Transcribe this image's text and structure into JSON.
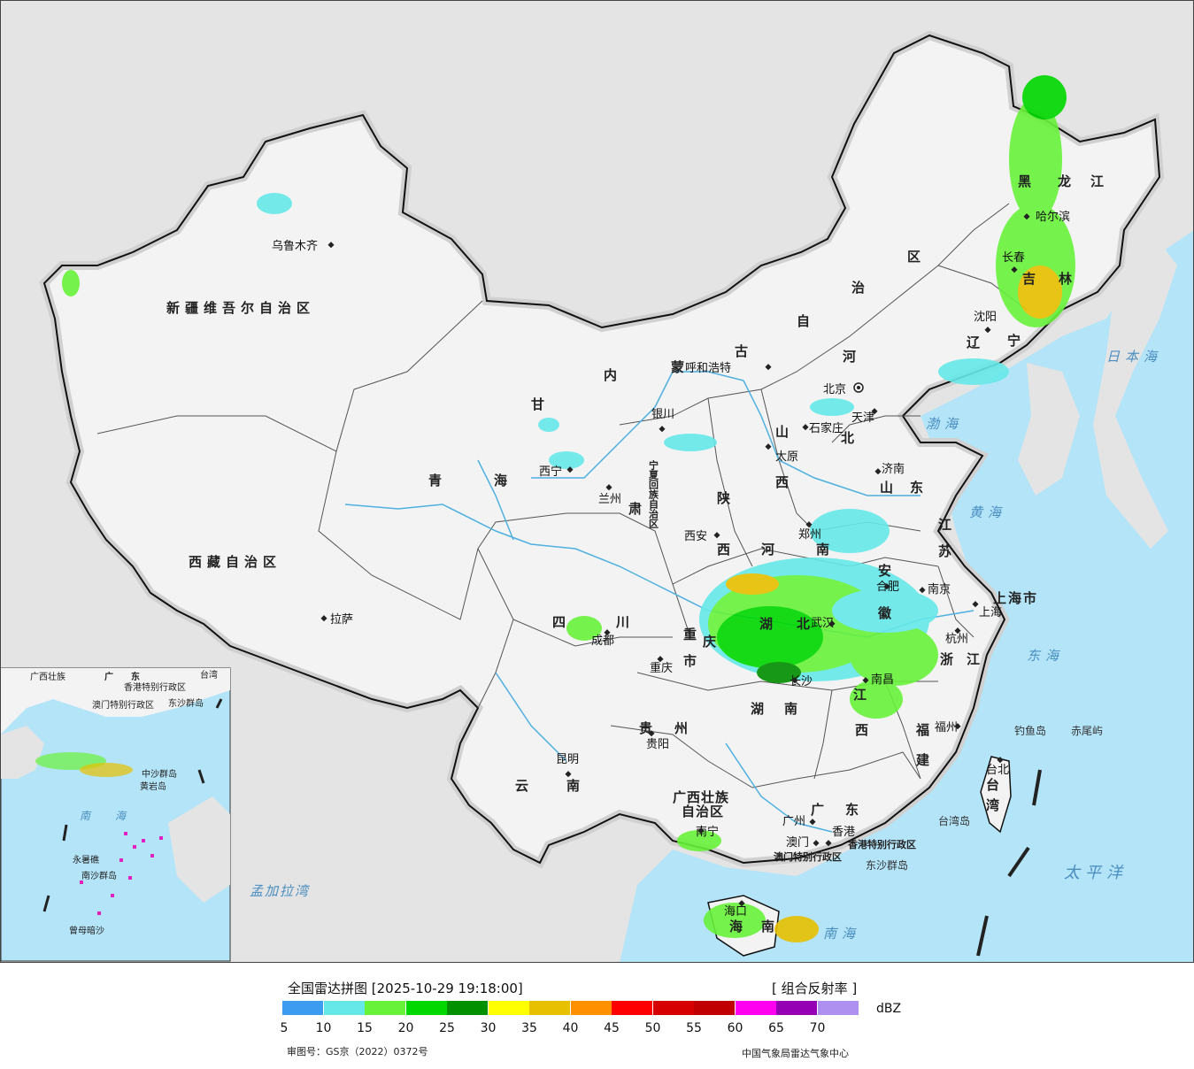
{
  "colors": {
    "ocean": "#b4e4f8",
    "land_bg": "#e4e4e4",
    "china": "#f3f3f3",
    "border": "#111111",
    "river": "#4db0e0"
  },
  "map": {
    "provinces": [
      {
        "text": "新疆维吾尔自治区",
        "kind": "province"
      },
      {
        "text": "西藏自治区",
        "kind": "province"
      },
      {
        "text": "青",
        "kind": "province"
      },
      {
        "text": "海",
        "kind": "province"
      },
      {
        "text": "甘",
        "kind": "province"
      },
      {
        "text": "肃",
        "kind": "province"
      },
      {
        "text": "四",
        "kind": "province"
      },
      {
        "text": "川",
        "kind": "province"
      },
      {
        "text": "云",
        "kind": "province"
      },
      {
        "text": "南",
        "kind": "province"
      },
      {
        "text": "内",
        "kind": "province"
      },
      {
        "text": "蒙",
        "kind": "province"
      },
      {
        "text": "古",
        "kind": "province"
      },
      {
        "text": "自",
        "kind": "province"
      },
      {
        "text": "治",
        "kind": "province"
      },
      {
        "text": "区",
        "kind": "province"
      },
      {
        "text": "黑",
        "kind": "province"
      },
      {
        "text": "龙",
        "kind": "province"
      },
      {
        "text": "江",
        "kind": "province"
      },
      {
        "text": "吉",
        "kind": "province"
      },
      {
        "text": "林",
        "kind": "province"
      },
      {
        "text": "辽",
        "kind": "province"
      },
      {
        "text": "宁",
        "kind": "province"
      },
      {
        "text": "河",
        "kind": "province"
      },
      {
        "text": "北",
        "kind": "province"
      },
      {
        "text": "山",
        "kind": "province"
      },
      {
        "text": "西",
        "kind": "province"
      },
      {
        "text": "陕",
        "kind": "province"
      },
      {
        "text": "西",
        "kind": "province"
      },
      {
        "text": "山",
        "kind": "province"
      },
      {
        "text": "东",
        "kind": "province"
      },
      {
        "text": "河",
        "kind": "province"
      },
      {
        "text": "南",
        "kind": "province"
      },
      {
        "text": "江",
        "kind": "province"
      },
      {
        "text": "苏",
        "kind": "province"
      },
      {
        "text": "安",
        "kind": "province"
      },
      {
        "text": "徽",
        "kind": "province"
      },
      {
        "text": "上海市",
        "kind": "province"
      },
      {
        "text": "浙",
        "kind": "province"
      },
      {
        "text": "江",
        "kind": "province"
      },
      {
        "text": "湖",
        "kind": "province"
      },
      {
        "text": "北",
        "kind": "province"
      },
      {
        "text": "重",
        "kind": "province"
      },
      {
        "text": "庆",
        "kind": "province"
      },
      {
        "text": "市",
        "kind": "province"
      },
      {
        "text": "湖",
        "kind": "province"
      },
      {
        "text": "南",
        "kind": "province"
      },
      {
        "text": "江",
        "kind": "province"
      },
      {
        "text": "西",
        "kind": "province"
      },
      {
        "text": "贵",
        "kind": "province"
      },
      {
        "text": "州",
        "kind": "province"
      },
      {
        "text": "福",
        "kind": "province"
      },
      {
        "text": "建",
        "kind": "province"
      },
      {
        "text": "广西壮族",
        "kind": "province"
      },
      {
        "text": "自治区",
        "kind": "province"
      },
      {
        "text": "广",
        "kind": "province"
      },
      {
        "text": "东",
        "kind": "province"
      },
      {
        "text": "海",
        "kind": "province"
      },
      {
        "text": "南",
        "kind": "province"
      },
      {
        "text": "台",
        "kind": "province"
      },
      {
        "text": "湾",
        "kind": "province"
      },
      {
        "text": "宁夏回族自治区",
        "kind": "province_small"
      },
      {
        "text": "香港特别行政区",
        "kind": "province_small"
      },
      {
        "text": "澳门特别行政区",
        "kind": "province_small"
      }
    ],
    "cities": [
      "乌鲁木齐",
      "拉萨",
      "西宁",
      "兰州",
      "银川",
      "呼和浩特",
      "北京",
      "天津",
      "石家庄",
      "太原",
      "济南",
      "郑州",
      "西安",
      "成都",
      "重庆",
      "昆明",
      "贵阳",
      "长沙",
      "武汉",
      "南昌",
      "合肥",
      "南京",
      "上海",
      "杭州",
      "福州",
      "台北",
      "广州",
      "南宁",
      "海口",
      "香港",
      "澳门",
      "哈尔滨",
      "长春",
      "沈阳"
    ],
    "seas": [
      "日本海",
      "渤海",
      "黄海",
      "东海",
      "太平洋",
      "南海",
      "孟加拉湾"
    ],
    "islands": [
      "钓鱼岛",
      "赤尾屿",
      "台湾岛",
      "东沙群岛"
    ],
    "inset": {
      "labels": [
        "广西壮族",
        "广",
        "东",
        "香港特别行政区",
        "澳门特别行政区",
        "东沙群岛",
        "中沙群岛",
        "黄岩岛",
        "南",
        "海",
        "永暑礁",
        "南沙群岛",
        "曾母暗沙",
        "台湾"
      ]
    }
  },
  "legend": {
    "title": "全国雷达拼图 [2025-10-29 19:18:00]",
    "product": "[ 组合反射率 ]",
    "unit": "dBZ",
    "ticks": [
      "5",
      "10",
      "15",
      "20",
      "25",
      "30",
      "35",
      "40",
      "45",
      "50",
      "55",
      "60",
      "65",
      "70"
    ],
    "colors": [
      "#3c9cef",
      "#66e8e8",
      "#68f23a",
      "#00d800",
      "#009000",
      "#ffff00",
      "#e7c000",
      "#ff9000",
      "#ff0000",
      "#d60000",
      "#c00000",
      "#ff00f0",
      "#9600b4",
      "#ad90f0"
    ],
    "approval": "审图号：GS京（2022）0372号",
    "source": "中国气象局雷达气象中心"
  }
}
